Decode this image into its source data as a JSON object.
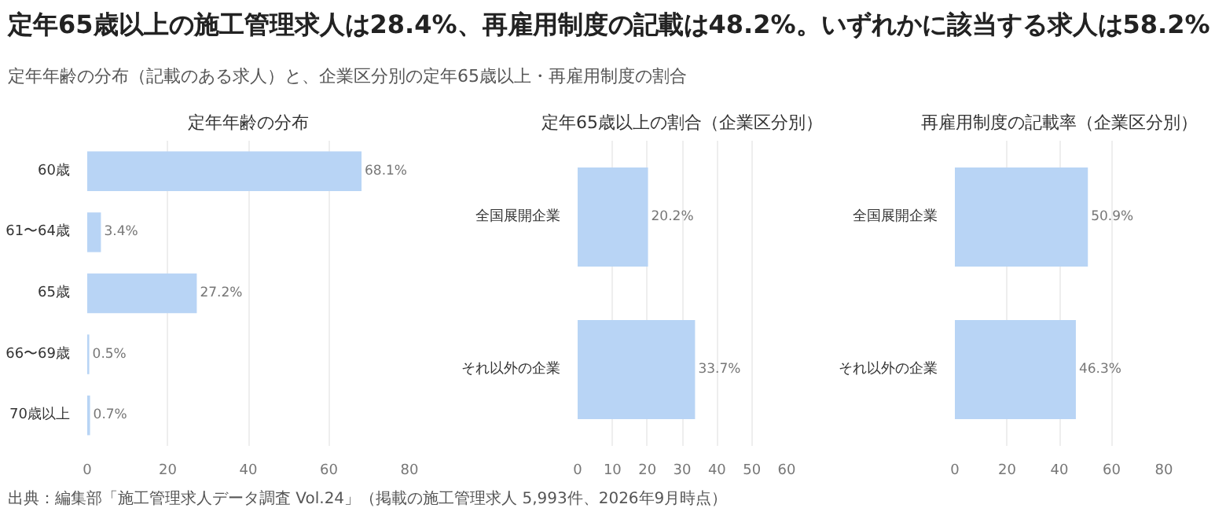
{
  "chart_data": [
    {
      "type": "other",
      "title": "定年65歳以上の施工管理求人は28.4%、再雇用制度の記載は48.2%。いずれかに該当する求人は58.2%",
      "subtitle": "定年年齢の分布（記載のある求人）と、企業区分別の定年65歳以上・再雇用制度の割合",
      "annotations": [
        "出典：編集部「施工管理求人データ調査 Vol.24」（掲載の施工管理求人 5,993件、2026年9月時点）"
      ]
    },
    {
      "type": "bar",
      "orientation": "horizontal",
      "title": "定年年齢の分布",
      "categories": [
        "60歳",
        "61〜64歳",
        "65歳",
        "66〜69歳",
        "70歳以上"
      ],
      "values": [
        68.1,
        3.4,
        27.2,
        0.5,
        0.7
      ],
      "value_labels": [
        "68.1%",
        "3.4%",
        "27.2%",
        "0.5%",
        "0.7%"
      ],
      "color": "#b8d4f5",
      "xlim": [
        0,
        80
      ],
      "xticks": [
        0,
        20,
        40,
        60,
        80
      ],
      "grid": "x"
    },
    {
      "type": "bar",
      "orientation": "horizontal",
      "title": "定年65歳以上の割合（企業区分別）",
      "categories": [
        "全国展開企業",
        "それ以外の企業"
      ],
      "values": [
        20.2,
        33.7
      ],
      "value_labels": [
        "20.2%",
        "33.7%"
      ],
      "color": "#b8d4f5",
      "xlim": [
        0,
        60
      ],
      "xticks": [
        0,
        10,
        20,
        30,
        40,
        50,
        60
      ],
      "grid": "x"
    },
    {
      "type": "bar",
      "orientation": "horizontal",
      "title": "再雇用制度の記載率（企業区分別）",
      "categories": [
        "全国展開企業",
        "それ以外の企業"
      ],
      "values": [
        50.9,
        46.3
      ],
      "value_labels": [
        "50.9%",
        "46.3%"
      ],
      "color": "#b8d4f5",
      "xlim": [
        0,
        80
      ],
      "xticks": [
        0,
        20,
        40,
        60,
        80
      ],
      "grid": "x"
    }
  ]
}
